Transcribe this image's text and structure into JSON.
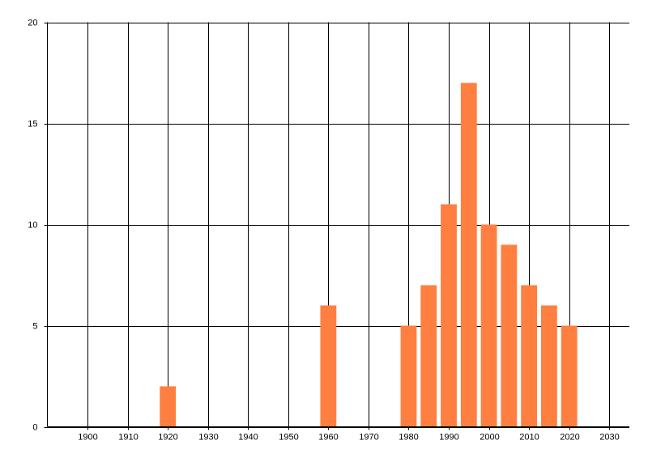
{
  "chart_data": {
    "type": "bar",
    "x": [
      1920,
      1960,
      1980,
      1985,
      1990,
      1995,
      2000,
      2005,
      2010,
      2015,
      2020
    ],
    "values": [
      2,
      6,
      5,
      7,
      11,
      17,
      10,
      9,
      7,
      6,
      5
    ],
    "color": "#ff7f40",
    "xlim": [
      1890,
      2035
    ],
    "xticks": [
      1900,
      1910,
      1920,
      1930,
      1940,
      1950,
      1960,
      1970,
      1980,
      1990,
      2000,
      2010,
      2020,
      2030
    ],
    "ylim": [
      0,
      20
    ],
    "yticks": [
      0,
      5,
      10,
      15,
      20
    ],
    "grid": true
  }
}
